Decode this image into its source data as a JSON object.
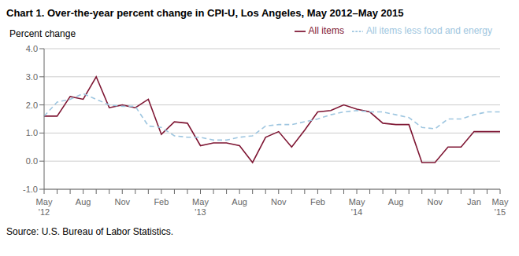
{
  "chart_data": {
    "type": "line",
    "title": "Chart 1. Over-the-year percent change in CPI-U, Los Angeles, May 2012–May 2015",
    "ylabel": "Percent change",
    "source": "Source: U.S. Bureau of Labor Statistics.",
    "categories": [
      "May\n'12",
      null,
      null,
      "Aug",
      null,
      null,
      "Nov",
      null,
      null,
      "Feb",
      null,
      null,
      "May\n'13",
      null,
      null,
      "Aug",
      null,
      null,
      "Nov",
      null,
      null,
      "Feb",
      null,
      null,
      "May\n'14",
      null,
      null,
      "Aug",
      null,
      null,
      "Nov",
      null,
      null,
      "Jan",
      null,
      "May\n'15"
    ],
    "series": [
      {
        "name": "All items",
        "color": "#7f1734",
        "line_style": "solid",
        "values": [
          1.6,
          1.6,
          2.3,
          2.2,
          3.0,
          1.9,
          2.0,
          1.9,
          2.2,
          0.95,
          1.4,
          1.35,
          0.55,
          0.65,
          0.65,
          0.55,
          -0.05,
          0.85,
          1.05,
          0.5,
          1.1,
          1.75,
          1.8,
          2.0,
          1.85,
          1.75,
          1.35,
          1.3,
          1.3,
          -0.05,
          -0.05,
          0.5,
          0.5,
          1.05,
          1.05,
          1.05
        ]
      },
      {
        "name": "All items less food and energy",
        "color": "#9ec6e0",
        "line_style": "dashed",
        "values": [
          1.6,
          2.1,
          2.2,
          2.4,
          2.2,
          2.0,
          1.95,
          1.95,
          1.25,
          1.2,
          0.9,
          0.85,
          0.85,
          0.75,
          0.75,
          0.85,
          0.9,
          1.25,
          1.3,
          1.3,
          1.4,
          1.5,
          1.65,
          1.75,
          1.8,
          1.75,
          1.75,
          1.65,
          1.55,
          1.2,
          1.15,
          1.5,
          1.5,
          1.65,
          1.75,
          1.75
        ]
      }
    ],
    "ylim": [
      -1.0,
      4.0
    ],
    "yticks": [
      {
        "value": -1.0,
        "label": "-1.0"
      },
      {
        "value": 0.0,
        "label": "0.0"
      },
      {
        "value": 1.0,
        "label": "1.0"
      },
      {
        "value": 2.0,
        "label": "2.0"
      },
      {
        "value": 3.0,
        "label": "3.0"
      },
      {
        "value": 4.0,
        "label": "4.0"
      }
    ],
    "grid": true,
    "legend": "upper right"
  }
}
